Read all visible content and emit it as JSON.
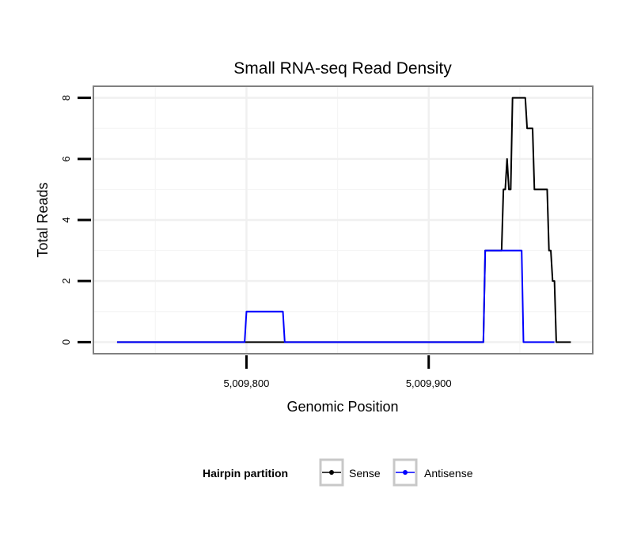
{
  "chart_data": {
    "type": "line",
    "title": "Small RNA-seq Read Density",
    "xlabel": "Genomic Position",
    "ylabel": "Total Reads",
    "xlim": [
      5009716,
      5009990
    ],
    "ylim": [
      -0.38,
      8.38
    ],
    "x_ticks": [
      5009800,
      5009900
    ],
    "x_tick_labels": [
      "5,009,800",
      "5,009,900"
    ],
    "y_ticks": [
      0,
      2,
      4,
      6,
      8
    ],
    "y_tick_labels": [
      "0",
      "2",
      "4",
      "6",
      "8"
    ],
    "grid": true,
    "legend_position": "bottom",
    "legend_title": "Hairpin partition",
    "series": [
      {
        "name": "Sense",
        "color": "#000000",
        "x": [
          5009729,
          5009930,
          5009931,
          5009940,
          5009941,
          5009942,
          5009943,
          5009944,
          5009945,
          5009946,
          5009947,
          5009953,
          5009954,
          5009957,
          5009958,
          5009965,
          5009966,
          5009967,
          5009968,
          5009969,
          5009970,
          5009978
        ],
        "y": [
          0,
          0,
          3,
          3,
          5,
          5,
          6,
          5,
          5,
          8,
          8,
          8,
          7,
          7,
          5,
          5,
          3,
          3,
          2,
          2,
          0,
          0
        ]
      },
      {
        "name": "Antisense",
        "color": "#0000ff",
        "x": [
          5009729,
          5009799,
          5009800,
          5009820,
          5009821,
          5009930,
          5009931,
          5009951,
          5009952,
          5009969
        ],
        "y": [
          0,
          0,
          1,
          1,
          0,
          0,
          3,
          3,
          0,
          0
        ]
      }
    ]
  }
}
